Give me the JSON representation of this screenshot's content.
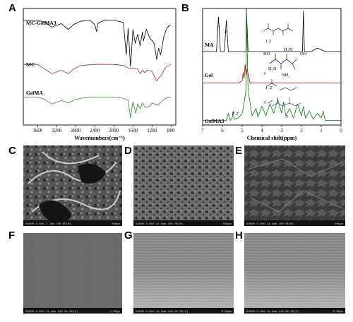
{
  "chart_data": [
    {
      "panel": "A",
      "type": "line",
      "title": "",
      "xlabel": "Wavenumbers(cm⁻¹)",
      "ylabel": "",
      "x_ticks": [
        3600,
        3200,
        2800,
        2400,
        2000,
        1600,
        1200,
        800
      ],
      "xlim": [
        3900,
        700
      ],
      "grid": false,
      "series": [
        {
          "name": "MC-GelMA3",
          "color": "#000000",
          "x": [
            3900,
            3600,
            3450,
            3300,
            3100,
            2960,
            2900,
            2850,
            2700,
            2500,
            2400,
            2360,
            2340,
            2200,
            2000,
            1800,
            1740,
            1700,
            1650,
            1630,
            1600,
            1550,
            1500,
            1450,
            1400,
            1380,
            1320,
            1250,
            1150,
            1100,
            1060,
            1020,
            950,
            900,
            850,
            800
          ],
          "y": [
            0.9,
            0.9,
            0.88,
            0.84,
            0.87,
            0.82,
            0.84,
            0.86,
            0.89,
            0.9,
            0.86,
            0.8,
            0.87,
            0.9,
            0.9,
            0.88,
            0.6,
            0.83,
            0.5,
            0.62,
            0.82,
            0.7,
            0.78,
            0.68,
            0.8,
            0.72,
            0.82,
            0.75,
            0.7,
            0.56,
            0.66,
            0.6,
            0.76,
            0.82,
            0.85,
            0.86
          ]
        },
        {
          "name": "MC",
          "color": "#a52a2a",
          "x": [
            3900,
            3600,
            3450,
            3300,
            3100,
            2950,
            2900,
            2850,
            2700,
            2400,
            2200,
            2000,
            1800,
            1650,
            1600,
            1500,
            1450,
            1400,
            1350,
            1300,
            1200,
            1150,
            1100,
            1060,
            1000,
            950,
            900,
            850,
            800
          ],
          "y": [
            0.52,
            0.52,
            0.48,
            0.44,
            0.47,
            0.44,
            0.46,
            0.48,
            0.51,
            0.52,
            0.52,
            0.52,
            0.51,
            0.48,
            0.49,
            0.48,
            0.44,
            0.47,
            0.45,
            0.47,
            0.46,
            0.42,
            0.38,
            0.4,
            0.43,
            0.47,
            0.5,
            0.51,
            0.52
          ]
        },
        {
          "name": "GelMA",
          "color": "#2e8b2e",
          "x": [
            3900,
            3600,
            3450,
            3300,
            3100,
            2950,
            2900,
            2850,
            2700,
            2400,
            2200,
            2000,
            1800,
            1700,
            1650,
            1630,
            1600,
            1540,
            1500,
            1450,
            1400,
            1340,
            1240,
            1200,
            1150,
            1080,
            1000,
            950,
            900,
            850,
            800
          ],
          "y": [
            0.24,
            0.24,
            0.22,
            0.18,
            0.21,
            0.19,
            0.2,
            0.21,
            0.23,
            0.24,
            0.24,
            0.24,
            0.23,
            0.21,
            0.06,
            0.12,
            0.2,
            0.1,
            0.18,
            0.14,
            0.19,
            0.15,
            0.16,
            0.19,
            0.18,
            0.17,
            0.2,
            0.22,
            0.23,
            0.24,
            0.24
          ]
        }
      ]
    },
    {
      "panel": "B",
      "type": "line",
      "title": "",
      "xlabel": "Chemical shift(ppm)",
      "ylabel": "",
      "x_ticks": [
        7,
        6,
        5,
        4,
        3,
        2,
        1,
        0
      ],
      "xlim": [
        7,
        0
      ],
      "grid": false,
      "series": [
        {
          "name": "MA",
          "color": "#000000",
          "x": [
            7,
            6.3,
            6.2,
            6.1,
            5.9,
            5.8,
            5.7,
            5.4,
            4.8,
            4.79,
            4.7,
            3,
            2.2,
            1.95,
            1.9,
            1.85,
            1.5,
            1.2,
            0.8,
            0
          ],
          "y": [
            0.63,
            0.63,
            0.93,
            0.63,
            0.63,
            0.9,
            0.63,
            0.63,
            0.63,
            1.0,
            0.63,
            0.63,
            0.63,
            0.63,
            0.98,
            0.63,
            0.63,
            0.66,
            0.63,
            0.63
          ]
        },
        {
          "name": "Gel",
          "color": "#cc0000",
          "x": [
            7,
            5.6,
            5.2,
            5.0,
            4.95,
            4.9,
            4.85,
            4.8,
            4.75,
            4.6,
            4.0,
            3.0,
            2.0,
            1.0,
            0
          ],
          "y": [
            0.36,
            0.36,
            0.36,
            0.38,
            0.45,
            0.4,
            0.52,
            0.42,
            0.48,
            0.36,
            0.36,
            0.36,
            0.36,
            0.36,
            0.36
          ]
        },
        {
          "name": "GelMA3",
          "color": "#008000",
          "x": [
            7,
            5.8,
            5.7,
            5.6,
            5.5,
            5.45,
            5.4,
            5.2,
            5.0,
            4.95,
            4.8,
            4.79,
            4.7,
            4.5,
            4.3,
            4.2,
            4.0,
            3.8,
            3.6,
            3.4,
            3.2,
            3.0,
            2.9,
            2.8,
            2.6,
            2.4,
            2.2,
            2.0,
            1.9,
            1.8,
            1.6,
            1.4,
            1.2,
            1.0,
            0.9,
            0.8,
            0
          ],
          "y": [
            0.04,
            0.04,
            0.1,
            0.04,
            0.06,
            0.12,
            0.05,
            0.06,
            0.1,
            0.14,
            0.3,
            0.98,
            0.3,
            0.08,
            0.14,
            0.07,
            0.16,
            0.08,
            0.18,
            0.1,
            0.22,
            0.1,
            0.2,
            0.08,
            0.14,
            0.06,
            0.18,
            0.08,
            0.16,
            0.06,
            0.12,
            0.05,
            0.1,
            0.06,
            0.12,
            0.04,
            0.04
          ]
        }
      ],
      "annotations": {
        "ma_peaks": [
          "1",
          "2"
        ],
        "ma_struct": "1 2",
        "gelma_peaks": [
          "1' 2'",
          "3'"
        ],
        "gelma_inset": [
          "1' 2'",
          "3'"
        ],
        "gel_amine_labels": [
          "HO",
          "H₂N",
          "OH",
          "H₂N",
          "NH₂",
          "3"
        ]
      }
    }
  ],
  "panels": {
    "a": {
      "letter": "A"
    },
    "b": {
      "letter": "B"
    },
    "c": {
      "letter": "C",
      "scale_text": "S4800 3.0kV 7.7mm x50 SE(M)",
      "scale_bar": "500μm"
    },
    "d": {
      "letter": "D",
      "scale_text": "S4800 3.0kV 11.8mm x50 SE(M)",
      "scale_bar": "500μm"
    },
    "e": {
      "letter": "E",
      "scale_text": "S4800 3.0kV 11.4mm x50 SE(M)",
      "scale_bar": "500μm"
    },
    "f": {
      "letter": "F",
      "scale_text": "S4800 2.0kV 11.4mm x30.0k SE(U)",
      "scale_bar": "1.00μm"
    },
    "g": {
      "letter": "G",
      "scale_text": "S4800 3.0kV 11.4mm x10.0k SE(U)",
      "scale_bar": "5.00μm"
    },
    "h": {
      "letter": "H",
      "scale_text": "S4800 3.0kV 11.4mm x10.0k SE(U)",
      "scale_bar": "5.00μm"
    }
  },
  "colors": {
    "mc_gelma3": "#000000",
    "mc": "#a52a2a",
    "gelma": "#2e8b2e",
    "gel": "#cc0000",
    "ma": "#000000",
    "structure_blue": "#1a237e"
  }
}
